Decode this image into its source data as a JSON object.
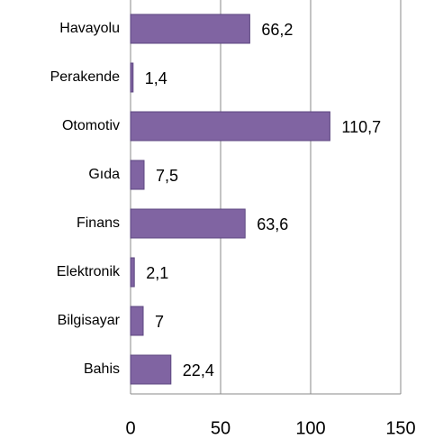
{
  "chart_data": {
    "type": "bar",
    "orientation": "horizontal",
    "categories": [
      "Havayolu",
      "Perakende",
      "Otomotiv",
      "Gıda",
      "Finans",
      "Elektronik",
      "Bilgisayar",
      "Bahis"
    ],
    "values": [
      66.2,
      1.4,
      110.7,
      7.5,
      63.6,
      2.1,
      7,
      22.4
    ],
    "value_labels": [
      "66,2",
      "1,4",
      "110,7",
      "7,5",
      "63,6",
      "2,1",
      "7",
      "22,4"
    ],
    "color": "#8064a2",
    "xlim": [
      0,
      150
    ],
    "xticks": [
      0,
      50,
      100,
      150
    ],
    "grid": true
  }
}
